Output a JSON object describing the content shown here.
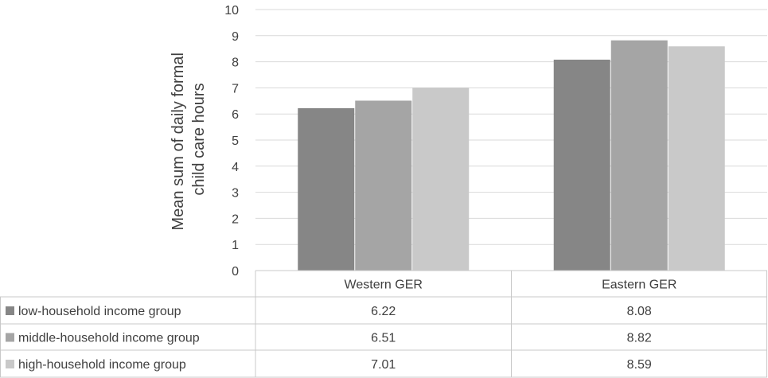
{
  "chart_data": {
    "type": "bar",
    "categories": [
      "Western GER",
      "Eastern GER"
    ],
    "series": [
      {
        "name": "low-household income group",
        "values": [
          6.22,
          8.08
        ],
        "value_labels": [
          "6.22",
          "8.08"
        ],
        "color": "#868686"
      },
      {
        "name": "middle-household income group",
        "values": [
          6.51,
          8.82
        ],
        "value_labels": [
          "6.51",
          "8.82"
        ],
        "color": "#a5a5a5"
      },
      {
        "name": "high-household income group",
        "values": [
          7.01,
          8.59
        ],
        "value_labels": [
          "7.01",
          "8.59"
        ],
        "color": "#c9c9c9"
      }
    ],
    "ylabel_lines": [
      "Mean sum of daily formal",
      "child care hours"
    ],
    "ylim": [
      0,
      10
    ],
    "yticks": [
      "0",
      "1",
      "2",
      "3",
      "4",
      "5",
      "6",
      "7",
      "8",
      "9",
      "10"
    ],
    "grid": true,
    "legend": "data table below chart"
  }
}
